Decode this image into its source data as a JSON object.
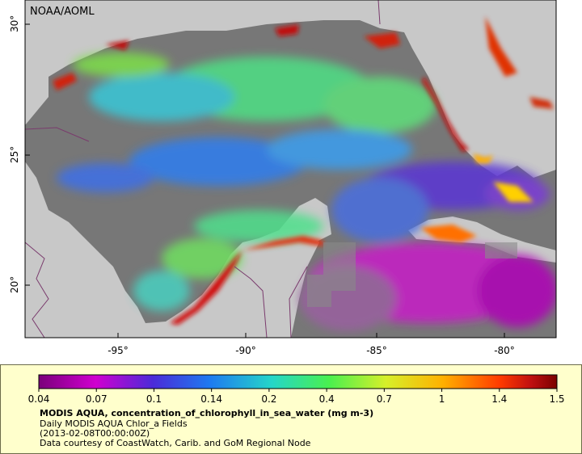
{
  "map": {
    "credit": "NOAA/AOML",
    "lat_labels": [
      "30°",
      "25°",
      "20°"
    ],
    "lon_labels": [
      "-95°",
      "-90°",
      "-85°",
      "-80°"
    ],
    "colors": {
      "land": "#c8c8c8",
      "no_data": "#777777",
      "borders": "#7a3b6d"
    }
  },
  "colorbar": {
    "ticks": [
      "0.04",
      "0.07",
      "0.1",
      "0.14",
      "0.2",
      "0.4",
      "0.7",
      "1",
      "1.4",
      "1.5"
    ],
    "colors": [
      "#7a007a",
      "#d000d0",
      "#4b2bd8",
      "#1e7af0",
      "#25d6c8",
      "#49f04f",
      "#d6f02a",
      "#ffb000",
      "#ff3a00",
      "#c01010",
      "#7a0000"
    ]
  },
  "caption": {
    "line1": "MODIS AQUA, concentration_of_chlorophyll_in_sea_water (mg m-3)",
    "line2": "Daily MODIS AQUA Chlor_a Fields",
    "line3": "(2013-02-08T00:00:00Z)",
    "line4": "Data courtesy of CoastWatch, Carib. and GoM Regional Node"
  }
}
